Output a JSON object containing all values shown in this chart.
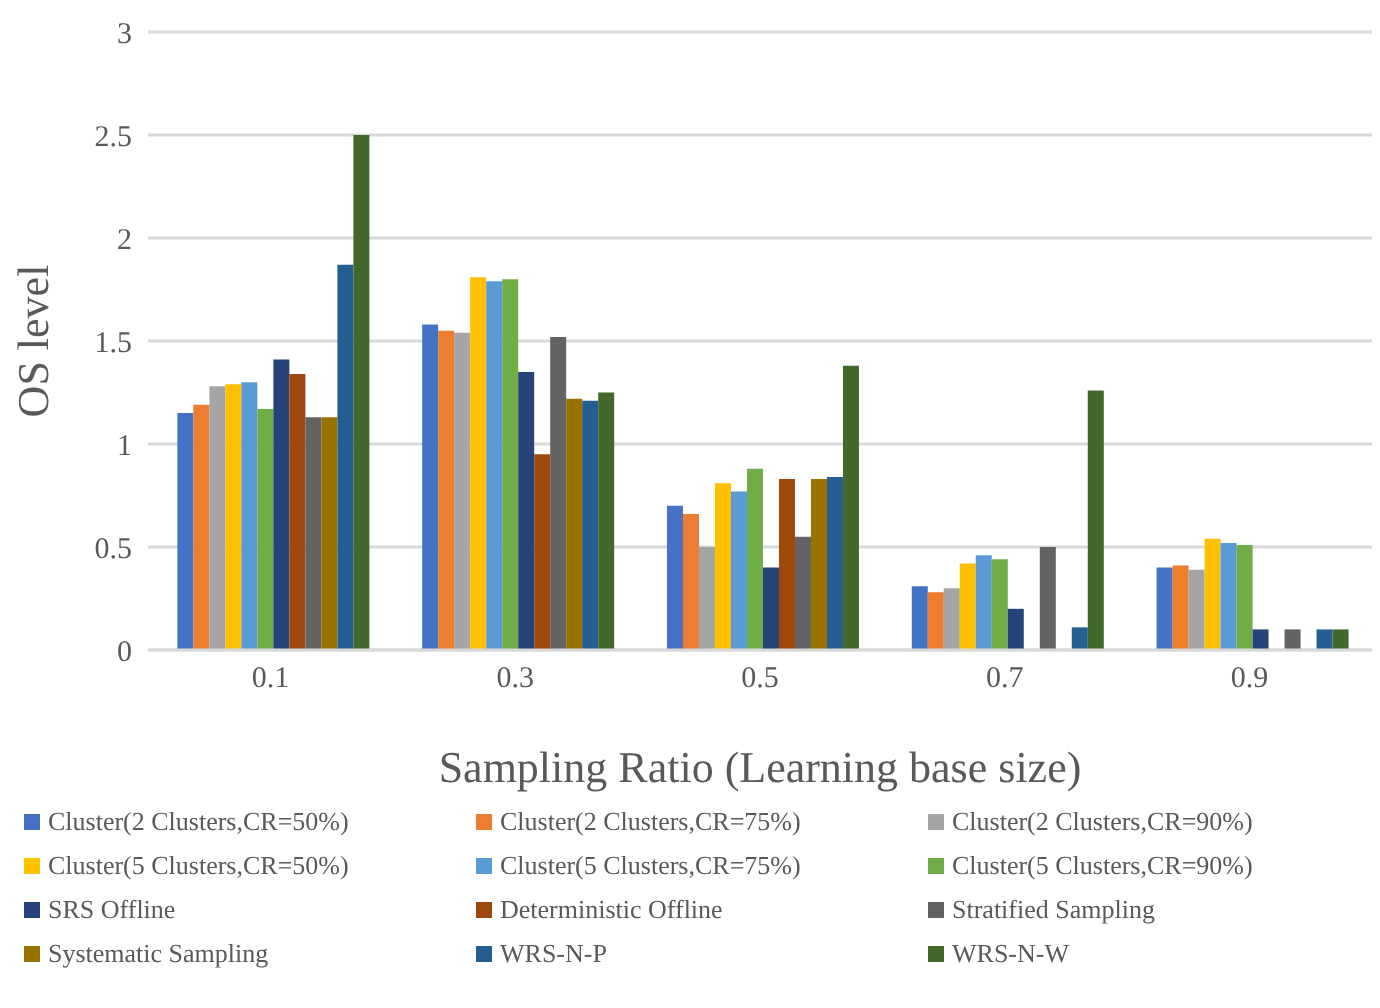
{
  "chart_data": {
    "type": "bar",
    "xlabel": "Sampling Ratio (Learning base size)",
    "ylabel": "OS level",
    "categories": [
      "0.1",
      "0.3",
      "0.5",
      "0.7",
      "0.9"
    ],
    "series": [
      {
        "name": "Cluster(2 Clusters,CR=50%)",
        "color": "#4472c4",
        "values": [
          1.15,
          1.58,
          0.7,
          0.31,
          0.4
        ]
      },
      {
        "name": "Cluster(2 Clusters,CR=75%)",
        "color": "#ed7d31",
        "values": [
          1.19,
          1.55,
          0.66,
          0.28,
          0.41
        ]
      },
      {
        "name": "Cluster(2 Clusters,CR=90%)",
        "color": "#a5a5a5",
        "values": [
          1.28,
          1.54,
          0.5,
          0.3,
          0.39
        ]
      },
      {
        "name": "Cluster(5 Clusters,CR=50%)",
        "color": "#ffc000",
        "values": [
          1.29,
          1.81,
          0.81,
          0.42,
          0.54
        ]
      },
      {
        "name": "Cluster(5 Clusters,CR=75%)",
        "color": "#5b9bd5",
        "values": [
          1.3,
          1.79,
          0.77,
          0.46,
          0.52
        ]
      },
      {
        "name": "Cluster(5 Clusters,CR=90%)",
        "color": "#70ad47",
        "values": [
          1.17,
          1.8,
          0.88,
          0.44,
          0.51
        ]
      },
      {
        "name": "SRS Offline",
        "color": "#264478",
        "values": [
          1.41,
          1.35,
          0.4,
          0.2,
          0.1
        ]
      },
      {
        "name": "Deterministic Offline",
        "color": "#9e480e",
        "values": [
          1.34,
          0.95,
          0.83,
          null,
          null
        ]
      },
      {
        "name": "Stratified Sampling",
        "color": "#636363",
        "values": [
          1.13,
          1.52,
          0.55,
          0.5,
          0.1
        ]
      },
      {
        "name": "Systematic Sampling",
        "color": "#997300",
        "values": [
          1.13,
          1.22,
          0.83,
          null,
          null
        ]
      },
      {
        "name": "WRS-N-P",
        "color": "#255e91",
        "values": [
          1.87,
          1.21,
          0.84,
          0.11,
          0.1
        ]
      },
      {
        "name": "WRS-N-W",
        "color": "#43682b",
        "values": [
          2.5,
          1.25,
          1.38,
          1.26,
          0.1
        ]
      }
    ],
    "ylim": [
      0,
      3
    ],
    "yticks": [
      0,
      0.5,
      1,
      1.5,
      2,
      2.5,
      3
    ],
    "grid": "y",
    "legend": "bottom"
  }
}
